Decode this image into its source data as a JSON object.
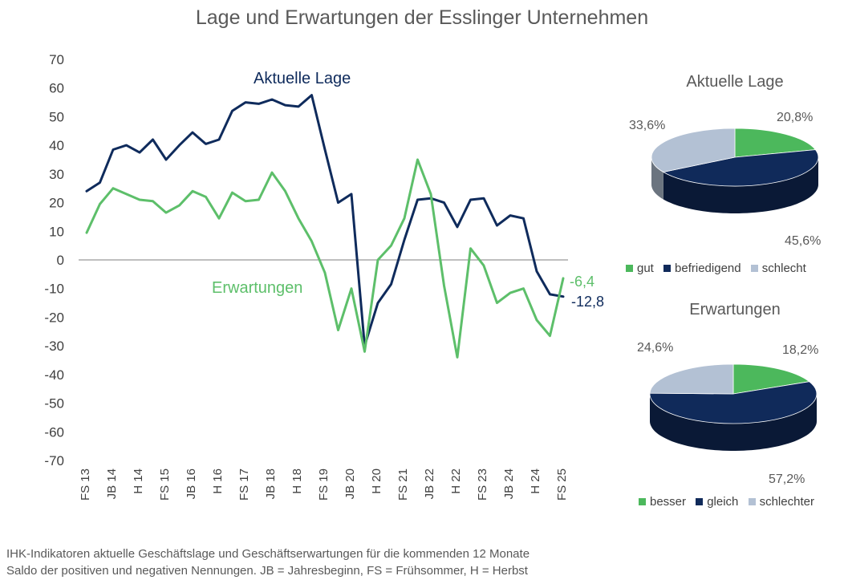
{
  "chart_data": [
    {
      "type": "line",
      "title": "Lage und Erwartungen der Esslinger Unternehmen",
      "ylim": [
        -70,
        70
      ],
      "yticks": [
        70,
        60,
        50,
        40,
        30,
        20,
        10,
        0,
        -10,
        -20,
        -30,
        -40,
        -50,
        -60,
        -70
      ],
      "x_tick_labels": [
        "FS 13",
        "JB 14",
        "H 14",
        "FS 15",
        "JB 16",
        "H 16",
        "FS 17",
        "JB 18",
        "H 18",
        "FS 19",
        "JB 20",
        "H 20",
        "FS 21",
        "JB 22",
        "H 22",
        "FS 23",
        "JB 24",
        "H 24",
        "FS 25"
      ],
      "x_note": "19 labelled survey dates with three surveys per label interval; values run from FS 13 to FS 25",
      "grid": false,
      "series": [
        {
          "name": "Aktuelle Lage",
          "color": "#0f2b5c",
          "values": [
            24,
            27,
            38.5,
            40,
            37.5,
            42,
            35,
            40,
            44.5,
            40.5,
            42,
            52,
            55,
            54.5,
            56,
            54,
            53.5,
            57.5,
            38.5,
            20,
            23,
            -30,
            -15,
            -8.5,
            7,
            21,
            21.5,
            20,
            11.5,
            21,
            21.5,
            12,
            15.5,
            14.5,
            -4,
            -12,
            -12.8
          ],
          "end_label": "-12,8"
        },
        {
          "name": "Erwartungen",
          "color": "#5dbf6a",
          "values": [
            9.5,
            19.5,
            25,
            23,
            21,
            20.5,
            16.5,
            19,
            24,
            22,
            14.5,
            23.5,
            20.5,
            21,
            30.5,
            24,
            14.5,
            6.5,
            -4.5,
            -24.5,
            -10,
            -32,
            0,
            5,
            14.5,
            35,
            23,
            -9,
            -34,
            4,
            -2,
            -15,
            -11.5,
            -10,
            -21,
            -26.5,
            -6.4
          ],
          "end_label": "-6,4"
        }
      ]
    },
    {
      "type": "pie",
      "title": "Aktuelle Lage",
      "labels": [
        "gut",
        "befriedigend",
        "schlecht"
      ],
      "values": [
        20.8,
        45.6,
        33.6
      ],
      "value_labels": [
        "20,8%",
        "45,6%",
        "33,6%"
      ],
      "colors": [
        "#4cb85c",
        "#102a5a",
        "#b3c1d4"
      ],
      "legend_placement": "bottom"
    },
    {
      "type": "pie",
      "title": "Erwartungen",
      "labels": [
        "besser",
        "gleich",
        "schlechter"
      ],
      "values": [
        18.2,
        57.2,
        24.6
      ],
      "value_labels": [
        "18,2%",
        "57,2%",
        "24,6%"
      ],
      "colors": [
        "#4cb85c",
        "#102a5a",
        "#b3c1d4"
      ],
      "legend_placement": "bottom"
    }
  ],
  "footer": {
    "line1": "IHK-Indikatoren aktuelle Geschäftslage und Geschäftserwartungen für die kommenden 12 Monate",
    "line2": "Saldo der positiven und negativen Nennungen. JB = Jahresbeginn, FS = Frühsommer, H = Herbst"
  }
}
